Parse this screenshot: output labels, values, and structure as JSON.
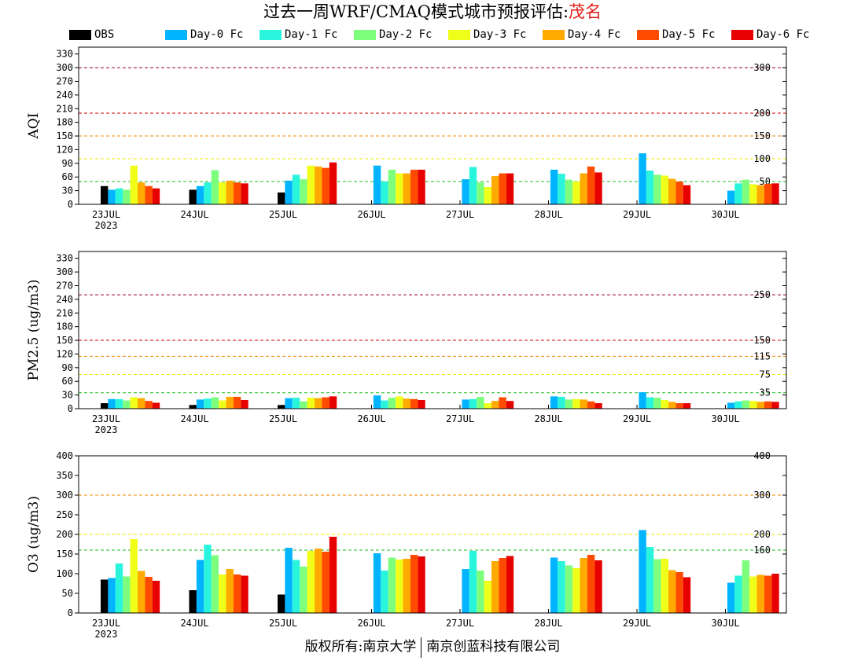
{
  "title": {
    "prefix": "过去一周WRF/CMAQ模式城市预报评估:",
    "city": "茂名"
  },
  "footer": {
    "left": "版权所有:南京大学",
    "right": "南京创蓝科技有限公司"
  },
  "series_colors": {
    "OBS": "#000000",
    "Day-0 Fc": "#00b4ff",
    "Day-1 Fc": "#29f5dc",
    "Day-2 Fc": "#7dff7d",
    "Day-3 Fc": "#f0ff1a",
    "Day-4 Fc": "#ffaa00",
    "Day-5 Fc": "#ff4b00",
    "Day-6 Fc": "#e60000"
  },
  "chart_data": [
    {
      "type": "bar",
      "ylabel": "AQI",
      "ylim": [
        0,
        345
      ],
      "yticks": [
        0,
        30,
        60,
        90,
        120,
        150,
        180,
        210,
        240,
        270,
        300,
        330
      ],
      "categories": [
        "23JUL",
        "24JUL",
        "25JUL",
        "26JUL",
        "27JUL",
        "28JUL",
        "29JUL",
        "30JUL"
      ],
      "first_category_year": "2023",
      "thresholds": [
        {
          "value": 50,
          "label": "50",
          "color": "#22bb22"
        },
        {
          "value": 100,
          "label": "100",
          "color": "#e8e800"
        },
        {
          "value": 150,
          "label": "150",
          "color": "#ee8800"
        },
        {
          "value": 200,
          "label": "200",
          "color": "#cc0000"
        },
        {
          "value": 300,
          "label": "300",
          "color": "#990033"
        }
      ],
      "series": [
        {
          "name": "OBS",
          "values": [
            40,
            32,
            26,
            null,
            null,
            null,
            null,
            null
          ]
        },
        {
          "name": "Day-0 Fc",
          "values": [
            32,
            40,
            52,
            85,
            55,
            76,
            112,
            30
          ]
        },
        {
          "name": "Day-1 Fc",
          "values": [
            35,
            48,
            65,
            50,
            82,
            67,
            74,
            46
          ]
        },
        {
          "name": "Day-2 Fc",
          "values": [
            32,
            75,
            55,
            76,
            48,
            54,
            65,
            54
          ]
        },
        {
          "name": "Day-3 Fc",
          "values": [
            85,
            48,
            85,
            68,
            38,
            50,
            63,
            44
          ]
        },
        {
          "name": "Day-4 Fc",
          "values": [
            48,
            52,
            83,
            68,
            62,
            68,
            56,
            42
          ]
        },
        {
          "name": "Day-5 Fc",
          "values": [
            40,
            48,
            80,
            76,
            68,
            83,
            50,
            45
          ]
        },
        {
          "name": "Day-6 Fc",
          "values": [
            35,
            46,
            92,
            76,
            68,
            70,
            42,
            46
          ]
        }
      ]
    },
    {
      "type": "bar",
      "ylabel": "PM2.5 (ug/m3)",
      "ylim": [
        0,
        345
      ],
      "yticks": [
        0,
        30,
        60,
        90,
        120,
        150,
        180,
        210,
        240,
        270,
        300,
        330
      ],
      "categories": [
        "23JUL",
        "24JUL",
        "25JUL",
        "26JUL",
        "27JUL",
        "28JUL",
        "29JUL",
        "30JUL"
      ],
      "first_category_year": "2023",
      "thresholds": [
        {
          "value": 35,
          "label": "35",
          "color": "#22bb22"
        },
        {
          "value": 75,
          "label": "75",
          "color": "#e8e800"
        },
        {
          "value": 115,
          "label": "115",
          "color": "#ee8800"
        },
        {
          "value": 150,
          "label": "150",
          "color": "#cc0000"
        },
        {
          "value": 250,
          "label": "250",
          "color": "#990033"
        }
      ],
      "series": [
        {
          "name": "OBS",
          "values": [
            12,
            8,
            8,
            null,
            null,
            null,
            null,
            null
          ]
        },
        {
          "name": "Day-0 Fc",
          "values": [
            21,
            20,
            23,
            29,
            20,
            27,
            36,
            13
          ]
        },
        {
          "name": "Day-1 Fc",
          "values": [
            21,
            22,
            24,
            18,
            21,
            26,
            25,
            16
          ]
        },
        {
          "name": "Day-2 Fc",
          "values": [
            18,
            25,
            16,
            24,
            26,
            20,
            24,
            18
          ]
        },
        {
          "name": "Day-3 Fc",
          "values": [
            25,
            18,
            24,
            27,
            12,
            21,
            19,
            17
          ]
        },
        {
          "name": "Day-4 Fc",
          "values": [
            23,
            26,
            23,
            22,
            17,
            20,
            15,
            15
          ]
        },
        {
          "name": "Day-5 Fc",
          "values": [
            17,
            26,
            25,
            21,
            25,
            16,
            12,
            16
          ]
        },
        {
          "name": "Day-6 Fc",
          "values": [
            13,
            19,
            27,
            19,
            17,
            12,
            12,
            15
          ]
        }
      ]
    },
    {
      "type": "bar",
      "ylabel": "O3 (ug/m3)",
      "ylim": [
        0,
        400
      ],
      "yticks": [
        0,
        50,
        100,
        150,
        200,
        250,
        300,
        350,
        400
      ],
      "categories": [
        "23JUL",
        "24JUL",
        "25JUL",
        "26JUL",
        "27JUL",
        "28JUL",
        "29JUL",
        "30JUL"
      ],
      "first_category_year": "2023",
      "thresholds": [
        {
          "value": 160,
          "label": "160",
          "color": "#22bb22"
        },
        {
          "value": 200,
          "label": "200",
          "color": "#e8e800"
        },
        {
          "value": 300,
          "label": "300",
          "color": "#ee8800"
        },
        {
          "value": 400,
          "label": "400",
          "color": "#cc0000"
        }
      ],
      "series": [
        {
          "name": "OBS",
          "values": [
            85,
            58,
            47,
            null,
            null,
            null,
            null,
            null
          ]
        },
        {
          "name": "Day-0 Fc",
          "values": [
            89,
            135,
            166,
            152,
            112,
            141,
            211,
            77
          ]
        },
        {
          "name": "Day-1 Fc",
          "values": [
            126,
            174,
            135,
            108,
            158,
            132,
            168,
            95
          ]
        },
        {
          "name": "Day-2 Fc",
          "values": [
            93,
            147,
            118,
            141,
            108,
            121,
            137,
            134
          ]
        },
        {
          "name": "Day-3 Fc",
          "values": [
            188,
            98,
            158,
            136,
            82,
            114,
            138,
            93
          ]
        },
        {
          "name": "Day-4 Fc",
          "values": [
            107,
            112,
            164,
            138,
            132,
            140,
            109,
            97
          ]
        },
        {
          "name": "Day-5 Fc",
          "values": [
            92,
            98,
            156,
            148,
            140,
            148,
            104,
            95
          ]
        },
        {
          "name": "Day-6 Fc",
          "values": [
            82,
            95,
            194,
            144,
            145,
            134,
            91,
            100
          ]
        }
      ]
    }
  ]
}
